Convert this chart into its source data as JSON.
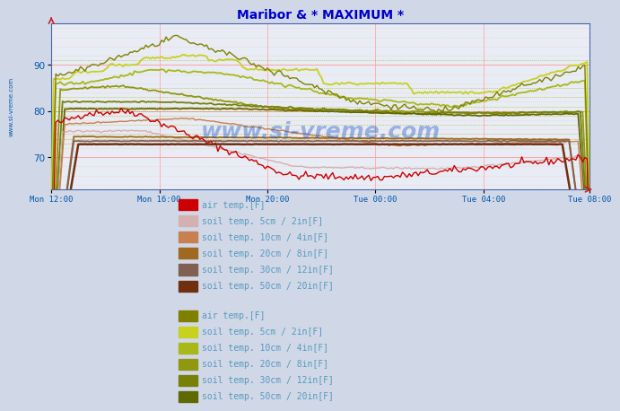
{
  "title": "Maribor & * MAXIMUM *",
  "title_color": "#0000cc",
  "bg_color": "#d0d8e8",
  "plot_bg_color": "#e8ecf4",
  "ylim": [
    63,
    99
  ],
  "yticks": [
    70,
    80,
    90
  ],
  "n_points": 240,
  "watermark": "www.si-vreme.com",
  "xtick_labels": [
    "Mon 12:00",
    "Mon 16:00",
    "Mon 20:00",
    "Tue 00:00",
    "Tue 04:00",
    "Tue 08:00"
  ],
  "xtick_positions": [
    0,
    48,
    96,
    144,
    192,
    239
  ],
  "legend1_colors": {
    "air_temp": "#cc0000",
    "soil5": "#d4b0b0",
    "soil10": "#c88050",
    "soil20": "#a06820",
    "soil30": "#806050",
    "soil50": "#703010"
  },
  "legend2_colors": {
    "air_temp": "#808000",
    "soil5": "#c8d020",
    "soil10": "#a8b818",
    "soil20": "#909810",
    "soil30": "#788008",
    "soil50": "#606800"
  },
  "legend_labels": [
    "air temp.[F]",
    "soil temp. 5cm / 2in[F]",
    "soil temp. 10cm / 4in[F]",
    "soil temp. 20cm / 8in[F]",
    "soil temp. 30cm / 12in[F]",
    "soil temp. 50cm / 20in[F]"
  ]
}
